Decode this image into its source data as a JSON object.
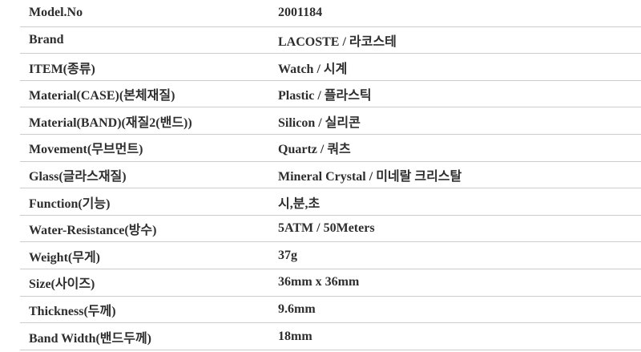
{
  "spec_table": {
    "rows": [
      {
        "label": "Model.No",
        "value": "2001184"
      },
      {
        "label": "Brand",
        "value": "LACOSTE / 라코스테"
      },
      {
        "label": "ITEM(종류)",
        "value": "Watch / 시계"
      },
      {
        "label": "Material(CASE)(본체재질)",
        "value": "Plastic / 플라스틱"
      },
      {
        "label": "Material(BAND)(재질2(밴드))",
        "value": "Silicon / 실리콘"
      },
      {
        "label": "Movement(무브먼트)",
        "value": "Quartz / 쿼츠"
      },
      {
        "label": "Glass(글라스재질)",
        "value": "Mineral Crystal / 미네랄 크리스탈"
      },
      {
        "label": "Function(기능)",
        "value": "시,분,초"
      },
      {
        "label": "Water-Resistance(방수)",
        "value": "5ATM / 50Meters"
      },
      {
        "label": "Weight(무게)",
        "value": "37g"
      },
      {
        "label": "Size(사이즈)",
        "value": "36mm x 36mm"
      },
      {
        "label": "Thickness(두께)",
        "value": "9.6mm"
      },
      {
        "label": "Band Width(밴드두께)",
        "value": "18mm"
      }
    ],
    "colors": {
      "text": "#2e2e2e",
      "divider": "#cccccc",
      "background": "#ffffff"
    }
  }
}
